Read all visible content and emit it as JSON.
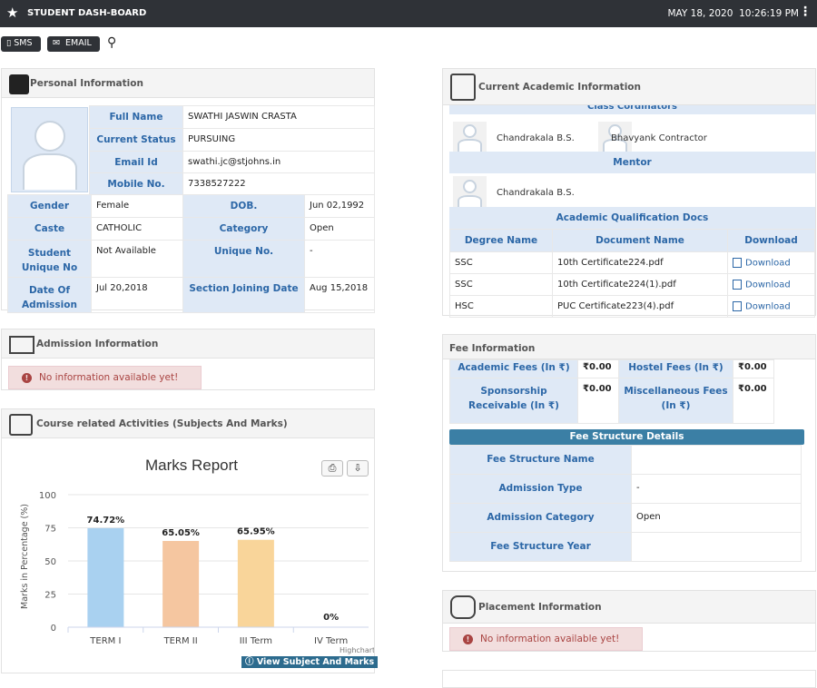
{
  "app": {
    "title": "STUDENT DASH-BOARD",
    "date": "MAY 18, 2020",
    "time": "10:26:19 PM"
  },
  "toolbar": {
    "sms": "SMS",
    "email": "EMAIL"
  },
  "personal": {
    "title": "Personal Information",
    "full_name_label": "Full Name",
    "full_name": "SWATHI JASWIN CRASTA",
    "status_label": "Current Status",
    "status": "PURSUING",
    "email_label": "Email Id",
    "email": "swathi.jc@stjohns.in",
    "mobile_label": "Mobile No.",
    "mobile": "7338527222",
    "gender_label": "Gender",
    "gender": "Female",
    "dob_label": "DOB.",
    "dob": "Jun 02,1992",
    "caste_label": "Caste",
    "caste": "CATHOLIC",
    "category_label": "Category",
    "category": "Open",
    "sun_label": "Student Unique No",
    "sun": "Not Available",
    "unique_label": "Unique No.",
    "unique": "-",
    "doa_label": "Date Of Admission",
    "doa": "Jul 20,2018",
    "sjd_label": "Section Joining Date",
    "sjd": "Aug 15,2018"
  },
  "admission": {
    "title": "Admission Information",
    "alert": "No information available yet!"
  },
  "course": {
    "title": "Course related Activities (Subjects And Marks)",
    "view_button": "View Subject And Marks"
  },
  "chart_data": {
    "type": "bar",
    "title": "Marks Report",
    "ylabel": "Marks in Percentage (%)",
    "categories": [
      "TERM I",
      "TERM II",
      "III Term",
      "IV Term"
    ],
    "values": [
      74.72,
      65.05,
      65.95,
      0
    ],
    "labels": [
      "74.72%",
      "65.05%",
      "65.95%",
      "0%"
    ],
    "colors": [
      "#a9d1f0",
      "#f5c6a0",
      "#f9d59a",
      "#cccccc"
    ],
    "yticks": [
      "100",
      "75",
      "50",
      "25",
      "0"
    ],
    "ylim": [
      0,
      100
    ],
    "credit": "Highcharts.com"
  },
  "academic": {
    "title": "Current Academic Information",
    "coordinators_label": "Class Cordinators",
    "coordinator1": "Chandrakala B.S.",
    "coordinator2": "Bhavyank Contractor",
    "mentor_label": "Mentor",
    "mentor": "Chandrakala B.S.",
    "docs_label": "Academic Qualification Docs",
    "cols": [
      "Degree Name",
      "Document Name",
      "Download"
    ],
    "rows": [
      {
        "degree": "SSC",
        "doc": "10th Certificate224.pdf",
        "dl": "Download"
      },
      {
        "degree": "SSC",
        "doc": "10th Certificate224(1).pdf",
        "dl": "Download"
      },
      {
        "degree": "HSC",
        "doc": "PUC Certificate223(4).pdf",
        "dl": "Download"
      }
    ]
  },
  "fee": {
    "title": "Fee Information",
    "academic_label": "Academic Fees (In ₹)",
    "academic": "₹0.00",
    "hostel_label": "Hostel Fees (In ₹)",
    "hostel": "₹0.00",
    "sponsor_label": "Sponsorship Receivable (In ₹)",
    "sponsor": "₹0.00",
    "misc_label": "Miscellaneous Fees (In ₹)",
    "misc": "₹0.00",
    "structure_header": "Fee Structure Details",
    "fsn_label": "Fee Structure Name",
    "fsn": "",
    "adm_type_label": "Admission Type",
    "adm_type": "-",
    "adm_cat_label": "Admission Category",
    "adm_cat": "Open",
    "fsy_label": "Fee Structure Year",
    "fsy": ""
  },
  "placement": {
    "title": "Placement Information",
    "alert": "No information available yet!"
  }
}
